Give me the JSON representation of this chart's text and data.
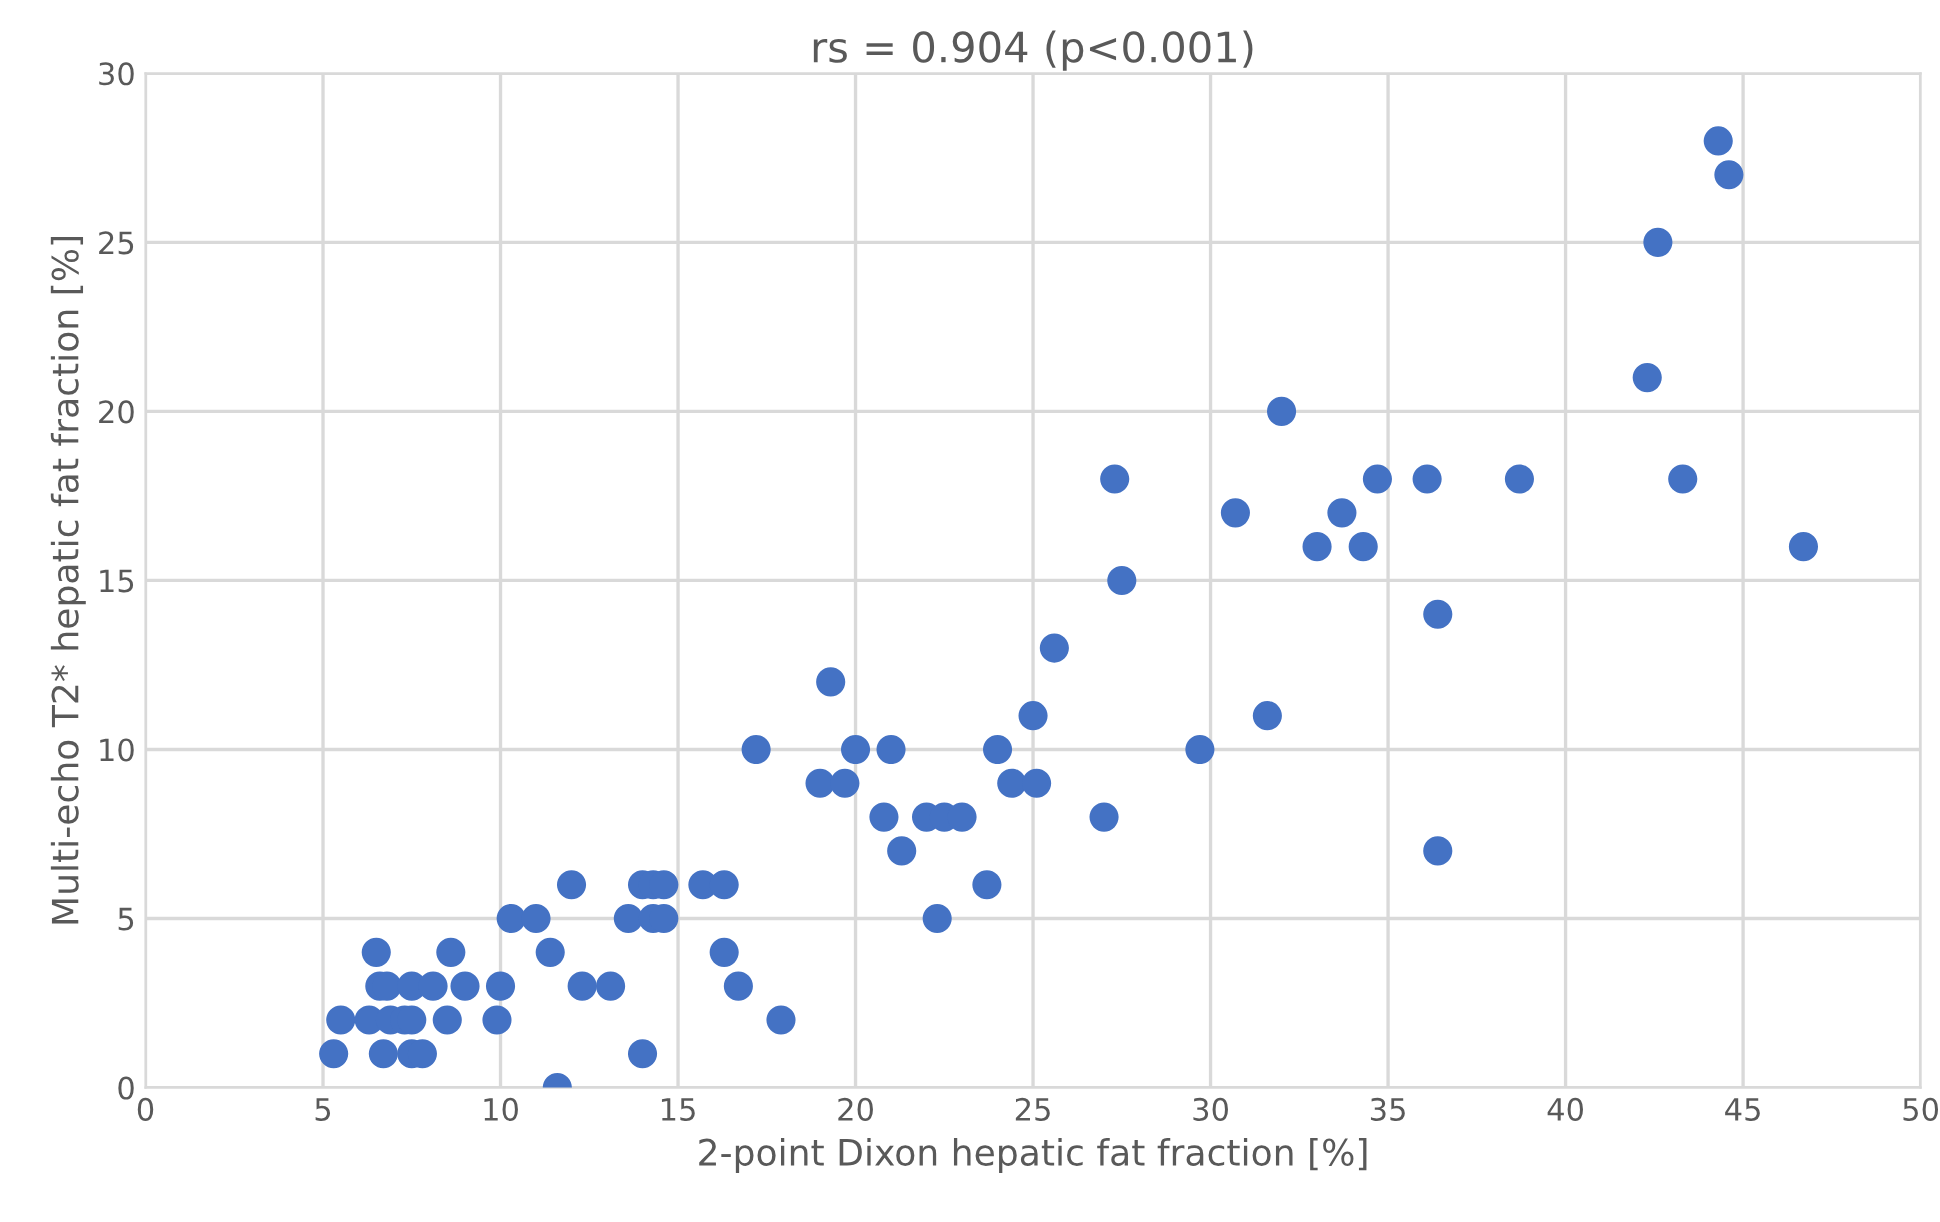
{
  "chart_data": {
    "type": "scatter",
    "title": "rs = 0.904 (p<0.001)",
    "xlabel": "2-point Dixon hepatic fat fraction [%]",
    "ylabel": "Multi-echo T2* hepatic fat fraction [%]",
    "xlim": [
      0,
      50
    ],
    "ylim": [
      0,
      30
    ],
    "xticks": [
      0,
      5,
      10,
      15,
      20,
      25,
      30,
      35,
      40,
      45,
      50
    ],
    "yticks": [
      0,
      5,
      10,
      15,
      20,
      25,
      30
    ],
    "grid": true,
    "marker": "circle",
    "series": [
      {
        "color": "#4472c4",
        "x": [
          5.3,
          5.5,
          6.3,
          6.5,
          6.6,
          6.8,
          6.7,
          6.9,
          7.3,
          7.5,
          7.5,
          7.5,
          7.8,
          8.1,
          8.5,
          8.6,
          9.0,
          9.9,
          10.0,
          10.3,
          11.0,
          11.4,
          11.6,
          12.0,
          12.3,
          13.1,
          13.6,
          14.0,
          14.0,
          14.3,
          14.3,
          14.6,
          14.6,
          15.7,
          16.3,
          16.3,
          16.7,
          17.2,
          17.9,
          19.0,
          19.3,
          19.7,
          20.0,
          20.8,
          21.0,
          21.3,
          22.0,
          22.3,
          22.5,
          23.0,
          23.7,
          24.0,
          24.4,
          25.0,
          25.1,
          25.6,
          27.0,
          27.3,
          27.5,
          29.7,
          30.7,
          31.6,
          32.0,
          33.0,
          33.7,
          34.3,
          34.7,
          36.1,
          36.4,
          36.4,
          38.7,
          42.3,
          42.6,
          43.3,
          44.3,
          44.6,
          46.7
        ],
        "values": [
          1,
          2,
          2,
          4,
          3,
          3,
          1,
          2,
          2,
          3,
          2,
          1,
          1,
          3,
          2,
          4,
          3,
          2,
          3,
          5,
          5,
          4,
          0,
          6,
          3,
          3,
          5,
          6,
          1,
          6,
          5,
          6,
          5,
          6,
          6,
          4,
          3,
          10,
          2,
          9,
          12,
          9,
          10,
          8,
          10,
          7,
          8,
          5,
          8,
          8,
          6,
          10,
          9,
          11,
          9,
          13,
          8,
          18,
          15,
          10,
          17,
          11,
          20,
          16,
          17,
          16,
          18,
          18,
          14,
          7,
          18,
          21,
          25,
          18,
          28,
          27,
          16
        ]
      }
    ]
  }
}
